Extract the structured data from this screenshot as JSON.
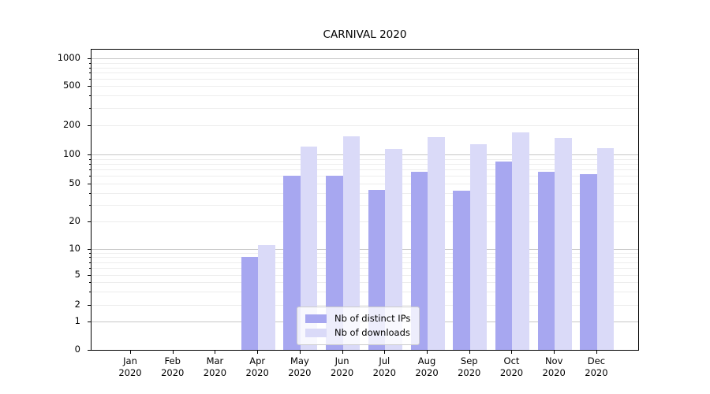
{
  "chart_data": {
    "type": "bar",
    "title": "CARNIVAL 2020",
    "yscale": "log (symlog, linear below 1)",
    "categories": [
      "Jan\n2020",
      "Feb\n2020",
      "Mar\n2020",
      "Apr\n2020",
      "May\n2020",
      "Jun\n2020",
      "Jul\n2020",
      "Aug\n2020",
      "Sep\n2020",
      "Oct\n2020",
      "Nov\n2020",
      "Dec\n2020"
    ],
    "series": [
      {
        "name": "Nb of distinct IPs",
        "color": "#a7a7f0",
        "values": [
          0,
          0,
          0,
          8,
          61,
          61,
          43,
          66,
          42,
          84,
          66,
          63
        ]
      },
      {
        "name": "Nb of downloads",
        "color": "#dadaf8",
        "values": [
          0,
          0,
          0,
          11,
          120,
          153,
          115,
          151,
          128,
          170,
          148,
          116
        ]
      }
    ],
    "yticks": [
      1000,
      500,
      200,
      100,
      50,
      20,
      10,
      5,
      2,
      1,
      0
    ],
    "ylim": [
      0,
      1200
    ],
    "xlabel": "",
    "ylabel": "",
    "grid": true,
    "legend_position": "lower center",
    "colors": {
      "bar_dark": "#a7a7f0",
      "bar_light": "#dadaf8",
      "grid_major": "#c6c6c6",
      "grid_minor": "#ededed",
      "axis": "#000000",
      "legend_border": "#cccccc"
    }
  }
}
